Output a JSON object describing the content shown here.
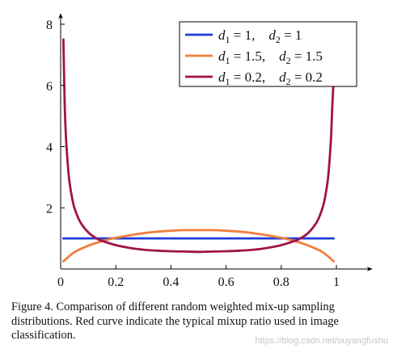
{
  "chart_data": {
    "type": "line",
    "title": "",
    "xlabel": "",
    "ylabel": "",
    "xlim": [
      0,
      1
    ],
    "ylim": [
      0,
      8
    ],
    "xticks": [
      0,
      0.2,
      0.4,
      0.6,
      0.8,
      1
    ],
    "xtick_labels": [
      "0",
      "0.2",
      "0.4",
      "0.6",
      "0.8",
      "1"
    ],
    "yticks": [
      2,
      4,
      6,
      8
    ],
    "ytick_labels": [
      "2",
      "4",
      "6",
      "8"
    ],
    "grid": false,
    "legend_position": "top-right",
    "series": [
      {
        "name": "d1 = 1, d2 = 1",
        "legend": {
          "a": "1,",
          "b": "1"
        },
        "color": "#1f3fd6",
        "x": [
          0.01,
          0.25,
          0.5,
          0.75,
          0.99
        ],
        "y": [
          1.0,
          1.0,
          1.0,
          1.0,
          1.0
        ]
      },
      {
        "name": "d1 = 1.5, d2 = 1.5",
        "legend": {
          "a": "1.5,",
          "b": "1.5"
        },
        "color": "#f07f3c",
        "x": [
          0.01,
          0.05,
          0.1,
          0.15,
          0.2,
          0.25,
          0.3,
          0.35,
          0.4,
          0.45,
          0.5,
          0.55,
          0.6,
          0.65,
          0.7,
          0.75,
          0.8,
          0.85,
          0.9,
          0.95,
          0.99
        ],
        "y": [
          0.25,
          0.55,
          0.76,
          0.91,
          1.02,
          1.1,
          1.17,
          1.22,
          1.25,
          1.27,
          1.27,
          1.27,
          1.25,
          1.22,
          1.17,
          1.1,
          1.02,
          0.91,
          0.76,
          0.55,
          0.25
        ]
      },
      {
        "name": "d1 = 0.2, d2 = 0.2",
        "legend": {
          "a": "0.2,",
          "b": "0.2"
        },
        "color": "#a0134a",
        "x": [
          0.01,
          0.015,
          0.02,
          0.03,
          0.04,
          0.05,
          0.07,
          0.1,
          0.13,
          0.15,
          0.2,
          0.25,
          0.3,
          0.35,
          0.4,
          0.45,
          0.5,
          0.55,
          0.6,
          0.65,
          0.7,
          0.75,
          0.8,
          0.85,
          0.87,
          0.9,
          0.93,
          0.95,
          0.96,
          0.97,
          0.98,
          0.985,
          0.99
        ],
        "y": [
          7.5,
          5.3,
          4.2,
          3.0,
          2.4,
          2.0,
          1.55,
          1.2,
          1.0,
          0.92,
          0.78,
          0.69,
          0.63,
          0.6,
          0.58,
          0.57,
          0.56,
          0.57,
          0.58,
          0.6,
          0.63,
          0.69,
          0.78,
          0.92,
          1.0,
          1.2,
          1.55,
          2.0,
          2.4,
          3.0,
          4.2,
          5.3,
          6.2
        ]
      }
    ]
  },
  "caption": "Figure 4. Comparison of different random weighted mix-up sampling distributions. Red curve indicate the typical mixup ratio used in image classification.",
  "watermark": "https://blog.csdn.net/ouyangfushu"
}
